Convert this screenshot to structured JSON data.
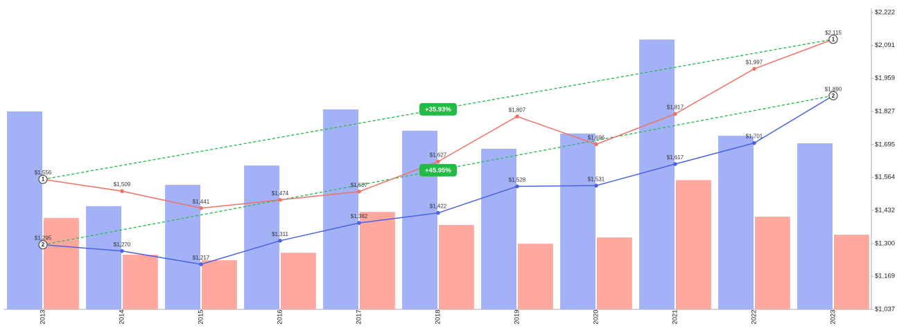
{
  "chart_data": {
    "type": "bar",
    "categories": [
      "2013",
      "2014",
      "2015",
      "2016",
      "2017",
      "2018",
      "2019",
      "2020",
      "2021",
      "2022",
      "2023"
    ],
    "series": [
      {
        "type": "bar",
        "color": "#a3b1f7",
        "values": [
          1827,
          1449,
          1534,
          1611,
          1835,
          1750,
          1678,
          1739,
          2114,
          1730,
          1700
        ]
      },
      {
        "type": "bar",
        "color": "#fea8a0",
        "values": [
          1402,
          1255,
          1233,
          1263,
          1426,
          1374,
          1299,
          1324,
          1553,
          1407,
          1335
        ]
      },
      {
        "type": "line",
        "color": "#f07064",
        "marker": "1",
        "trend_label": "+35.93%",
        "values": [
          1556,
          1509,
          1441,
          1474,
          1507,
          1627,
          1807,
          1696,
          1817,
          1997,
          2115
        ],
        "value_labels": [
          "$1,556",
          "$1,509",
          "$1,441",
          "$1,474",
          "$1,507",
          "$1,627",
          "$1,807",
          "$1,696",
          "$1,817",
          "$1,997",
          "$2,115"
        ]
      },
      {
        "type": "line",
        "color": "#4a62e0",
        "marker": "2",
        "trend_label": "+45.95%",
        "values": [
          1295,
          1270,
          1217,
          1311,
          1382,
          1422,
          1528,
          1531,
          1617,
          1701,
          1890
        ],
        "value_labels": [
          "$1,295",
          "$1,270",
          "$1,217",
          "$1,311",
          "$1,382",
          "$1,422",
          "$1,528",
          "$1,531",
          "$1,617",
          "$1,701",
          "$1,890"
        ]
      }
    ],
    "trend_color": "#22bb44",
    "ylim": [
      1037,
      2222
    ],
    "yticks": [
      {
        "value": 1037,
        "label": "$1,037"
      },
      {
        "value": 1169,
        "label": "$1,169"
      },
      {
        "value": 1300,
        "label": "$1,300"
      },
      {
        "value": 1432,
        "label": "$1,432"
      },
      {
        "value": 1564,
        "label": "$1,564"
      },
      {
        "value": 1695,
        "label": "$1,695"
      },
      {
        "value": 1827,
        "label": "$1,827"
      },
      {
        "value": 1959,
        "label": "$1,959"
      },
      {
        "value": 2091,
        "label": "$2,091"
      },
      {
        "value": 2222,
        "label": "$2,222"
      }
    ]
  }
}
